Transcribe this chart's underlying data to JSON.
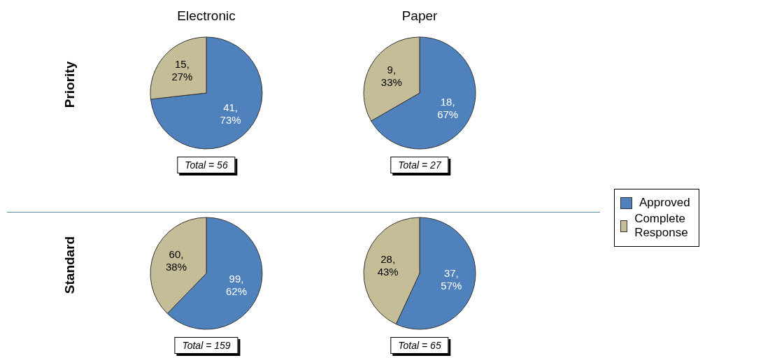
{
  "chart_data": [
    {
      "type": "pie",
      "title": "Electronic",
      "ylabel": "Priority",
      "categories": [
        "Approved",
        "Complete Response"
      ],
      "values": [
        41,
        15
      ],
      "colors": [
        "#4f81bd",
        "#c4bd97"
      ],
      "value_labels": [
        "41,\n73%",
        "15,\n27%"
      ],
      "annotations": [
        "Total = 56"
      ],
      "legend": "right"
    },
    {
      "type": "pie",
      "title": "Paper",
      "categories": [
        null,
        null
      ],
      "values": [
        18,
        9
      ],
      "colors": [
        "#4f81bd",
        "#c4bd97"
      ],
      "value_labels": [
        "18,\n67%",
        "9,\n33%"
      ],
      "annotations": [
        "Total = 27"
      ]
    },
    {
      "type": "pie",
      "ylabel": "Standard",
      "categories": [
        null,
        null
      ],
      "values": [
        99,
        60
      ],
      "colors": [
        "#4f81bd",
        "#c4bd97"
      ],
      "value_labels": [
        "99,\n62%",
        "60,\n38%"
      ],
      "annotations": [
        "Total = 159"
      ]
    },
    {
      "type": "pie",
      "categories": [
        null,
        null
      ],
      "values": [
        37,
        28
      ],
      "colors": [
        "#4f81bd",
        "#c4bd97"
      ],
      "value_labels": [
        "37,\n57%",
        "28,\n43%"
      ],
      "annotations": [
        "Total = 65"
      ]
    }
  ]
}
